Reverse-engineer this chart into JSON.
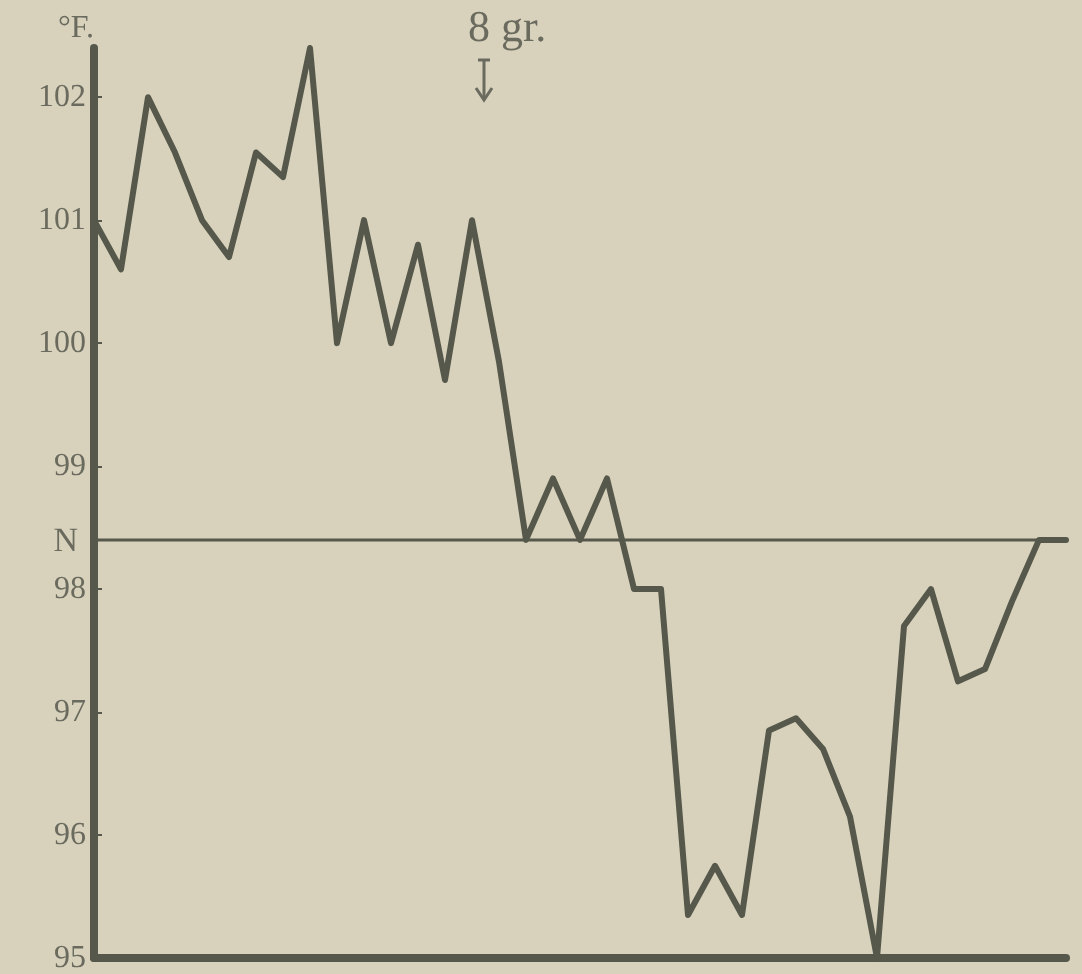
{
  "chart_data": {
    "type": "line",
    "ylabel": "°F.",
    "annotations": [
      "8 gr."
    ],
    "categories": [
      null,
      null,
      null,
      null,
      null,
      null,
      null,
      null,
      null,
      null,
      null,
      null,
      null,
      null,
      null,
      null,
      null,
      null,
      null,
      null,
      null,
      null,
      null,
      null,
      null,
      null,
      null,
      null,
      null,
      null,
      null,
      null,
      null,
      null,
      null,
      null,
      null
    ],
    "series": [
      {
        "color": "#55584a",
        "values": [
          101.0,
          100.6,
          102.0,
          101.55,
          101.0,
          100.7,
          101.55,
          101.35,
          102.4,
          100.0,
          101.0,
          100.0,
          100.8,
          99.7,
          101.0,
          99.85,
          98.4,
          98.9,
          98.4,
          98.9,
          98.0,
          98.0,
          95.35,
          95.75,
          95.35,
          96.85,
          96.95,
          96.7,
          96.15,
          95.0,
          97.7,
          98.0,
          97.25,
          97.35,
          97.9,
          98.4,
          98.4
        ]
      }
    ],
    "ylim": [
      95,
      102.4
    ],
    "yticks": [
      95,
      96,
      97,
      98,
      99,
      100,
      101,
      102
    ],
    "ref_lines": [
      {
        "axis": "y",
        "value": 98.4,
        "label": "N",
        "color": "#55584a"
      }
    ],
    "grid": false,
    "marker": "none",
    "line_style": "solid"
  }
}
